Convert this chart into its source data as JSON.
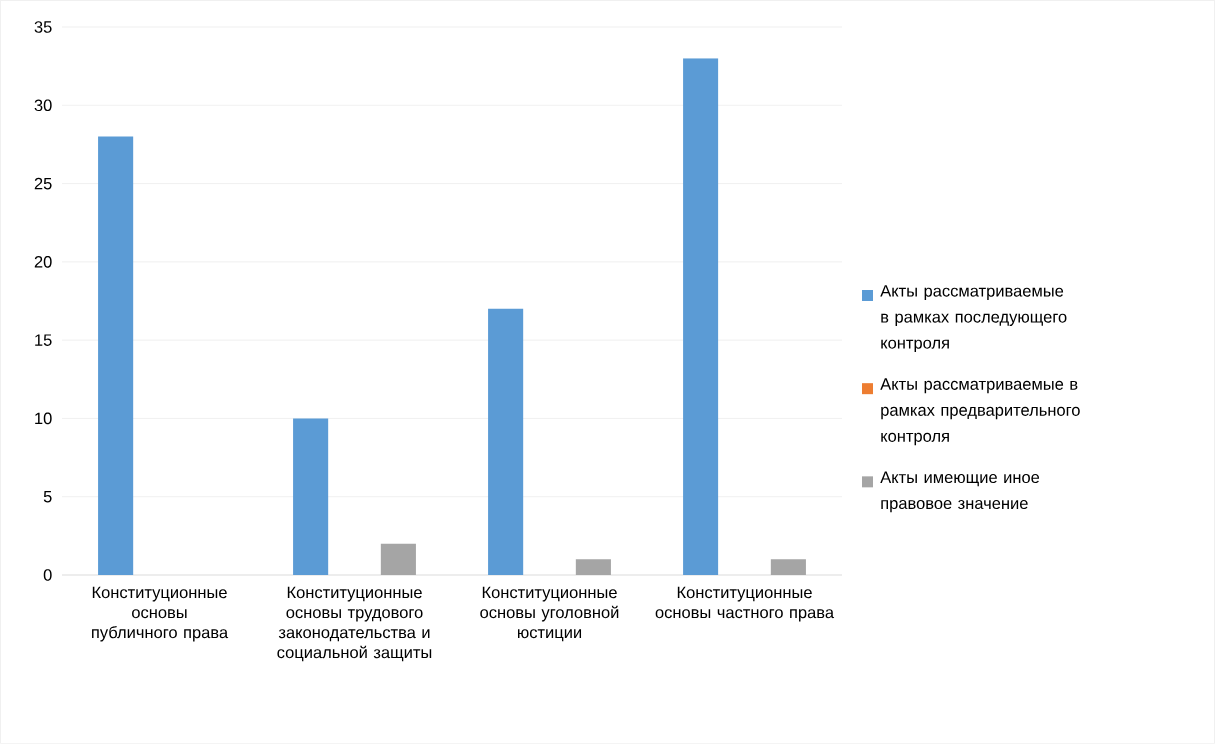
{
  "chart_data": {
    "type": "bar",
    "categories": [
      "Конституционные основы публичного права",
      "Конституционные основы трудового законодательства и социальной защиты",
      "Конституционные основы уголовной юстиции",
      "Конституционные основы частного права"
    ],
    "series": [
      {
        "name": "Акты рассматриваемые в рамках последующего контроля",
        "color": "#5b9bd5",
        "values": [
          28,
          10,
          17,
          33
        ]
      },
      {
        "name": "Акты рассматриваемые в рамках предварительного контроля",
        "color": "#ed7d31",
        "values": [
          0,
          0,
          0,
          0
        ]
      },
      {
        "name": "Акты имеющие иное правовое значение",
        "color": "#a5a5a5",
        "values": [
          0,
          2,
          1,
          1
        ]
      }
    ],
    "ylim": [
      0,
      35
    ],
    "yticks": [
      0,
      5,
      10,
      15,
      20,
      25,
      30,
      35
    ],
    "grid": "y",
    "legend": "right"
  }
}
